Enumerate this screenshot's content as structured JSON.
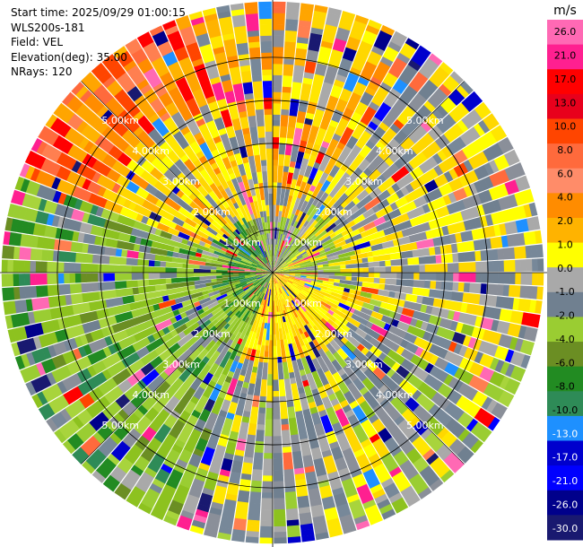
{
  "header": {
    "start_time": "Start time: 2025/09/29 01:00:15",
    "instrument": "WLS200s-181",
    "field": "Field: VEL",
    "elevation": "Elevation(deg): 35.00",
    "nrays": "NRays: 120"
  },
  "chart_data": {
    "type": "ppi",
    "title": "WLS200s-181 VEL",
    "field": "VEL",
    "units": "m/s",
    "elevation_deg": 35.0,
    "n_rays": 120,
    "max_range_km": 5.0,
    "range_rings_km": [
      1,
      2,
      3,
      4,
      5
    ],
    "ring_labels": [
      "1.00km",
      "2.00km",
      "3.00km",
      "4.00km",
      "5.00km"
    ],
    "colorbar": {
      "unit_label": "m/s",
      "ticks": [
        "26.0",
        "21.0",
        "17.0",
        "13.0",
        "10.0",
        "8.0",
        "6.0",
        "4.0",
        "2.0",
        "1.0",
        "0.0",
        "-1.0",
        "-2.0",
        "-4.0",
        "-6.0",
        "-8.0",
        "-10.0",
        "-13.0",
        "-17.0",
        "-21.0",
        "-26.0",
        "-30.0"
      ],
      "colors": [
        "#ff69b4",
        "#ff2090",
        "#ff0000",
        "#e8001c",
        "#ff4500",
        "#ff6a3c",
        "#ff8c69",
        "#ff8c00",
        "#ffb300",
        "#ffff00",
        "#a9a9a9",
        "#708090",
        "#9acd32",
        "#6b8e23",
        "#228b22",
        "#2e8b57",
        "#1e90ff",
        "#0000cd",
        "#0000ff",
        "#00008b",
        "#191970"
      ]
    },
    "sectors": [
      {
        "az_start": 0,
        "az_end": 30,
        "dominant": "mixed"
      },
      {
        "az_start": 30,
        "az_end": 100,
        "dominant": "gray-yellow"
      },
      {
        "az_start": 100,
        "az_end": 200,
        "dominant": "yellow-near, gray-far"
      },
      {
        "az_start": 200,
        "az_end": 290,
        "dominant": "green"
      },
      {
        "az_start": 290,
        "az_end": 360,
        "dominant": "orange-red-far, yellow"
      }
    ]
  }
}
